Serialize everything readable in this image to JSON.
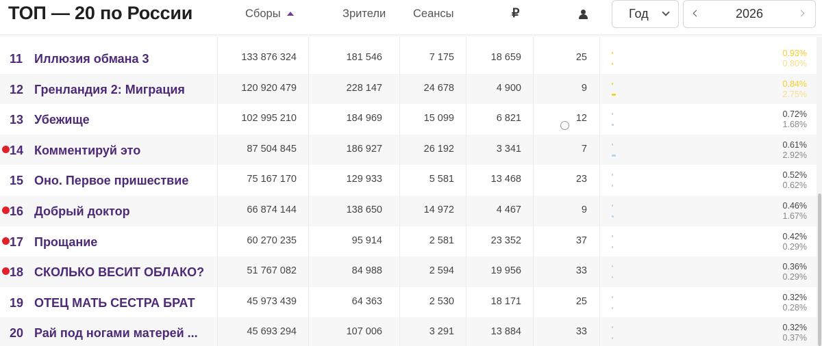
{
  "header": {
    "title": "ТОП — 20 по России",
    "col_gross": "Сборы",
    "col_viewers": "Зрители",
    "col_sessions": "Сеансы",
    "col_avg": "₽",
    "col_days_icon": "person-icon",
    "period_label": "Год",
    "year": "2026"
  },
  "colors": {
    "title_purple": "#4d2a78",
    "new_dot": "#e0212a",
    "highlight_yellow": "#f5cf2a",
    "bar_blue": "#b8d3ea"
  },
  "rows": [
    {
      "rank": "11",
      "title": "Иллюзия обмана 3",
      "gross": "133 876 324",
      "viewers": "181 546",
      "sessions": "7 175",
      "avg": "18 659",
      "days": "25",
      "share_gross": "0.93%",
      "share_sessions": "0.80%",
      "new": false,
      "bar1": 0.93,
      "bar2": 0.8
    },
    {
      "rank": "12",
      "title": "Гренландия 2: Миграция",
      "gross": "120 920 479",
      "viewers": "228 147",
      "sessions": "24 678",
      "avg": "4 900",
      "days": "9",
      "share_gross": "0.84%",
      "share_sessions": "2.75%",
      "new": false,
      "bar1": 0.84,
      "bar2": 2.75
    },
    {
      "rank": "13",
      "title": "Убежище",
      "gross": "102 995 210",
      "viewers": "184 969",
      "sessions": "15 099",
      "avg": "6 821",
      "days": "12",
      "share_gross": "0.72%",
      "share_sessions": "1.68%",
      "new": false,
      "bar1": 0.72,
      "bar2": 1.68
    },
    {
      "rank": "14",
      "title": "Комментируй это",
      "gross": "87 504 845",
      "viewers": "186 927",
      "sessions": "26 192",
      "avg": "3 341",
      "days": "7",
      "share_gross": "0.61%",
      "share_sessions": "2.92%",
      "new": true,
      "bar1": 0.61,
      "bar2": 2.92
    },
    {
      "rank": "15",
      "title": "Оно. Первое пришествие",
      "gross": "75 167 170",
      "viewers": "129 933",
      "sessions": "5 581",
      "avg": "13 468",
      "days": "23",
      "share_gross": "0.52%",
      "share_sessions": "0.62%",
      "new": false,
      "bar1": 0.52,
      "bar2": 0.62
    },
    {
      "rank": "16",
      "title": "Добрый доктор",
      "gross": "66 874 144",
      "viewers": "138 650",
      "sessions": "14 972",
      "avg": "4 467",
      "days": "9",
      "share_gross": "0.46%",
      "share_sessions": "1.67%",
      "new": true,
      "bar1": 0.46,
      "bar2": 1.67
    },
    {
      "rank": "17",
      "title": "Прощание",
      "gross": "60 270 235",
      "viewers": "95 914",
      "sessions": "2 581",
      "avg": "23 352",
      "days": "37",
      "share_gross": "0.42%",
      "share_sessions": "0.29%",
      "new": true,
      "bar1": 0.42,
      "bar2": 0.29
    },
    {
      "rank": "18",
      "title": "СКОЛЬКО ВЕСИТ ОБЛАКО?",
      "gross": "51 767 082",
      "viewers": "84 988",
      "sessions": "2 594",
      "avg": "19 956",
      "days": "33",
      "share_gross": "0.36%",
      "share_sessions": "0.29%",
      "new": true,
      "bar1": 0.36,
      "bar2": 0.29
    },
    {
      "rank": "19",
      "title": "ОТЕЦ МАТЬ СЕСТРА БРАТ",
      "gross": "45 973 439",
      "viewers": "64 363",
      "sessions": "2 530",
      "avg": "18 171",
      "days": "25",
      "share_gross": "0.32%",
      "share_sessions": "0.28%",
      "new": false,
      "bar1": 0.32,
      "bar2": 0.28
    },
    {
      "rank": "20",
      "title": "Рай под ногами матерей ...",
      "gross": "45 693 294",
      "viewers": "107 006",
      "sessions": "3 291",
      "avg": "13 884",
      "days": "33",
      "share_gross": "0.32%",
      "share_sessions": "0.37%",
      "new": false,
      "bar1": 0.32,
      "bar2": 0.37
    }
  ]
}
